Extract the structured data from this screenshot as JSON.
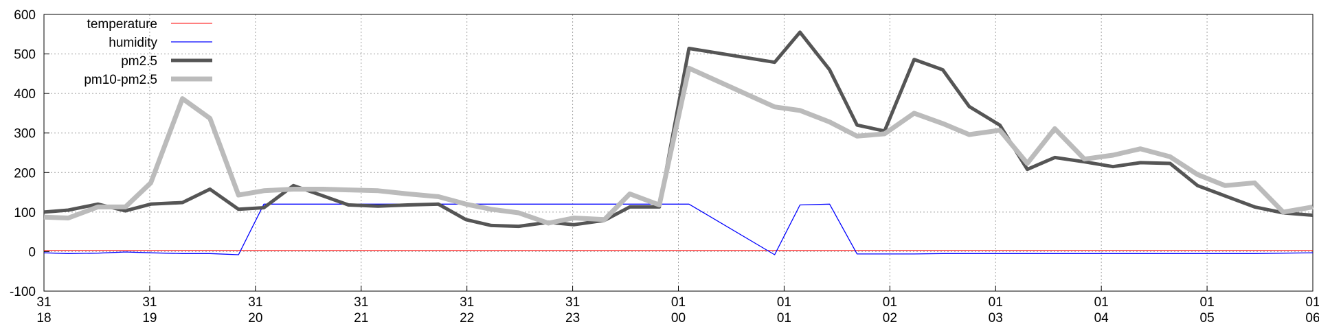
{
  "chart_data": {
    "type": "line",
    "x": [
      18.0,
      18.23,
      18.51,
      18.77,
      19.01,
      19.31,
      19.57,
      19.84,
      20.08,
      20.36,
      20.64,
      20.88,
      21.16,
      21.44,
      21.73,
      21.99,
      22.23,
      22.49,
      22.77,
      23.01,
      23.3,
      23.54,
      23.82,
      24.1,
      24.91,
      25.15,
      25.43,
      25.69,
      25.95,
      26.23,
      26.5,
      26.75,
      27.04,
      27.3,
      27.56,
      27.84,
      28.11,
      28.37,
      28.65,
      28.91,
      29.17,
      29.45,
      29.72,
      30.0
    ],
    "series": [
      {
        "name": "temperature",
        "color": "#ff0000",
        "line_width": 1,
        "values": [
          3,
          3,
          3,
          3,
          3,
          3,
          3,
          3,
          3,
          3,
          3,
          3,
          3,
          3,
          3,
          3,
          3,
          3,
          3,
          3,
          3,
          3,
          3,
          3,
          3,
          3,
          3,
          3,
          3,
          3,
          3,
          3,
          3,
          3,
          3,
          3,
          3,
          3,
          3,
          3,
          3,
          3,
          3,
          3
        ]
      },
      {
        "name": "humidity",
        "color": "#0000ff",
        "line_width": 1.3,
        "values": [
          -3,
          -5,
          -4,
          -1,
          -3,
          -5,
          -5,
          -8,
          120,
          120,
          120,
          120,
          120,
          120,
          120,
          120,
          120,
          120,
          120,
          120,
          120,
          120,
          120,
          120,
          -8,
          118,
          120,
          -6,
          -6,
          -6,
          -5,
          -5,
          -5,
          -5,
          -5,
          -5,
          -5,
          -5,
          -5,
          -5,
          -5,
          -5,
          -4,
          -3
        ]
      },
      {
        "name": "pm2.5",
        "color": "#555555",
        "line_width": 5,
        "values": [
          100,
          105,
          120,
          103,
          120,
          124,
          158,
          107,
          111,
          167,
          141,
          118,
          115,
          118,
          120,
          81,
          66,
          64,
          74,
          68,
          79,
          113,
          113,
          514,
          479,
          555,
          460,
          320,
          305,
          486,
          460,
          367,
          320,
          208,
          238,
          227,
          215,
          225,
          223,
          167,
          141,
          113,
          98,
          92
        ]
      },
      {
        "name": "pm10-pm2.5",
        "color": "#bbbbbb",
        "line_width": 7,
        "values": [
          87,
          85,
          113,
          113,
          174,
          387,
          337,
          143,
          154,
          158,
          158,
          156,
          154,
          146,
          139,
          120,
          107,
          98,
          72,
          85,
          81,
          146,
          118,
          464,
          366,
          357,
          328,
          292,
          298,
          350,
          324,
          296,
          307,
          223,
          311,
          234,
          244,
          260,
          240,
          195,
          167,
          174,
          100,
          113
        ]
      }
    ],
    "xlim": [
      18,
      30
    ],
    "xticks": [
      {
        "value": 18,
        "label": "31\n18"
      },
      {
        "value": 19,
        "label": "31\n19"
      },
      {
        "value": 20,
        "label": "31\n20"
      },
      {
        "value": 21,
        "label": "31\n21"
      },
      {
        "value": 22,
        "label": "31\n22"
      },
      {
        "value": 23,
        "label": "31\n23"
      },
      {
        "value": 24,
        "label": "01\n00"
      },
      {
        "value": 25,
        "label": "01\n01"
      },
      {
        "value": 26,
        "label": "01\n02"
      },
      {
        "value": 27,
        "label": "01\n03"
      },
      {
        "value": 28,
        "label": "01\n04"
      },
      {
        "value": 29,
        "label": "01\n05"
      },
      {
        "value": 30,
        "label": "01\n06"
      }
    ],
    "ylim": [
      -100,
      600
    ],
    "yticks": [
      -100,
      0,
      100,
      200,
      300,
      400,
      500,
      600
    ],
    "grid": true,
    "legend": "top-left"
  }
}
